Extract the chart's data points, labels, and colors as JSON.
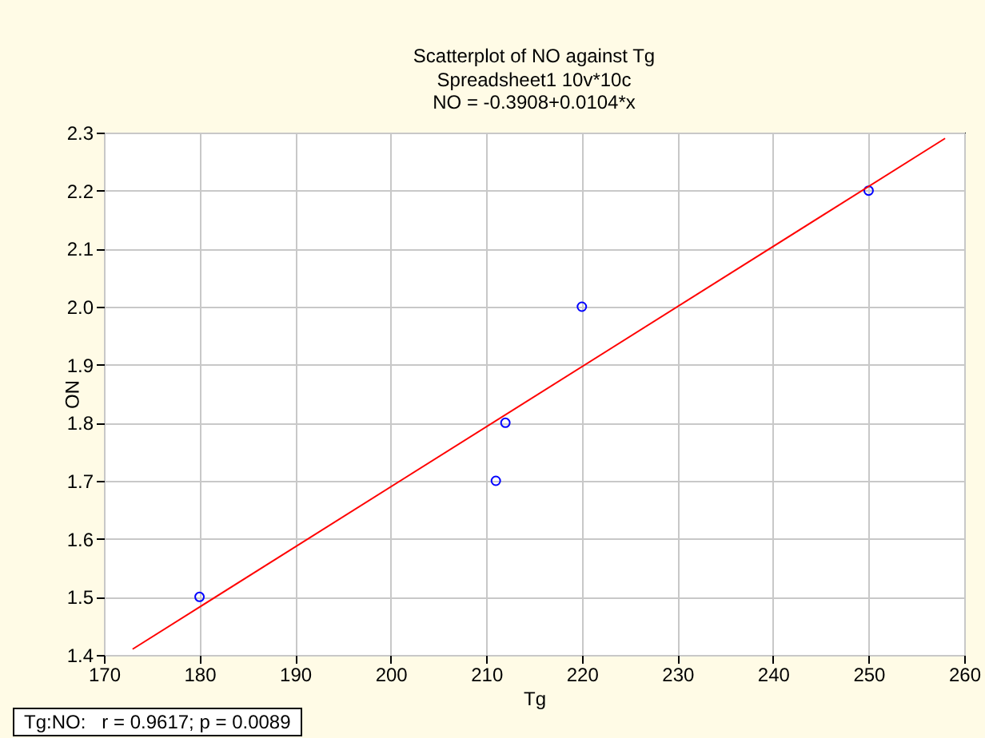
{
  "chart_data": {
    "type": "scatter",
    "title": "Scatterplot of NO against Tg",
    "subtitle": "Spreadsheet1 10v*10c",
    "annotations": [
      "NO = -0.3908+0.0104*x",
      "Tg:NO:   r = 0.9617; p = 0.0089"
    ],
    "xlabel": "Tg",
    "ylabel": "NO",
    "series": [
      {
        "color": "#0000ff",
        "x": [
          180,
          211,
          212,
          220,
          250
        ],
        "values": [
          1.5,
          1.7,
          1.8,
          2.0,
          2.2
        ]
      },
      {
        "type": "line",
        "marker": "none",
        "color": "#ff0000",
        "x": [
          173,
          258
        ],
        "values": [
          1.41,
          2.29
        ]
      }
    ],
    "xlim": [
      170,
      260
    ],
    "xticks": [
      170,
      180,
      190,
      200,
      210,
      220,
      230,
      240,
      250,
      260
    ],
    "ylim": [
      1.4,
      2.3
    ],
    "yticks": [
      1.4,
      1.5,
      1.6,
      1.7,
      1.8,
      1.9,
      {
        "value": 2,
        "label": "2.0"
      },
      2.1,
      2.2,
      2.3
    ],
    "grid": true,
    "marker": "circle"
  }
}
